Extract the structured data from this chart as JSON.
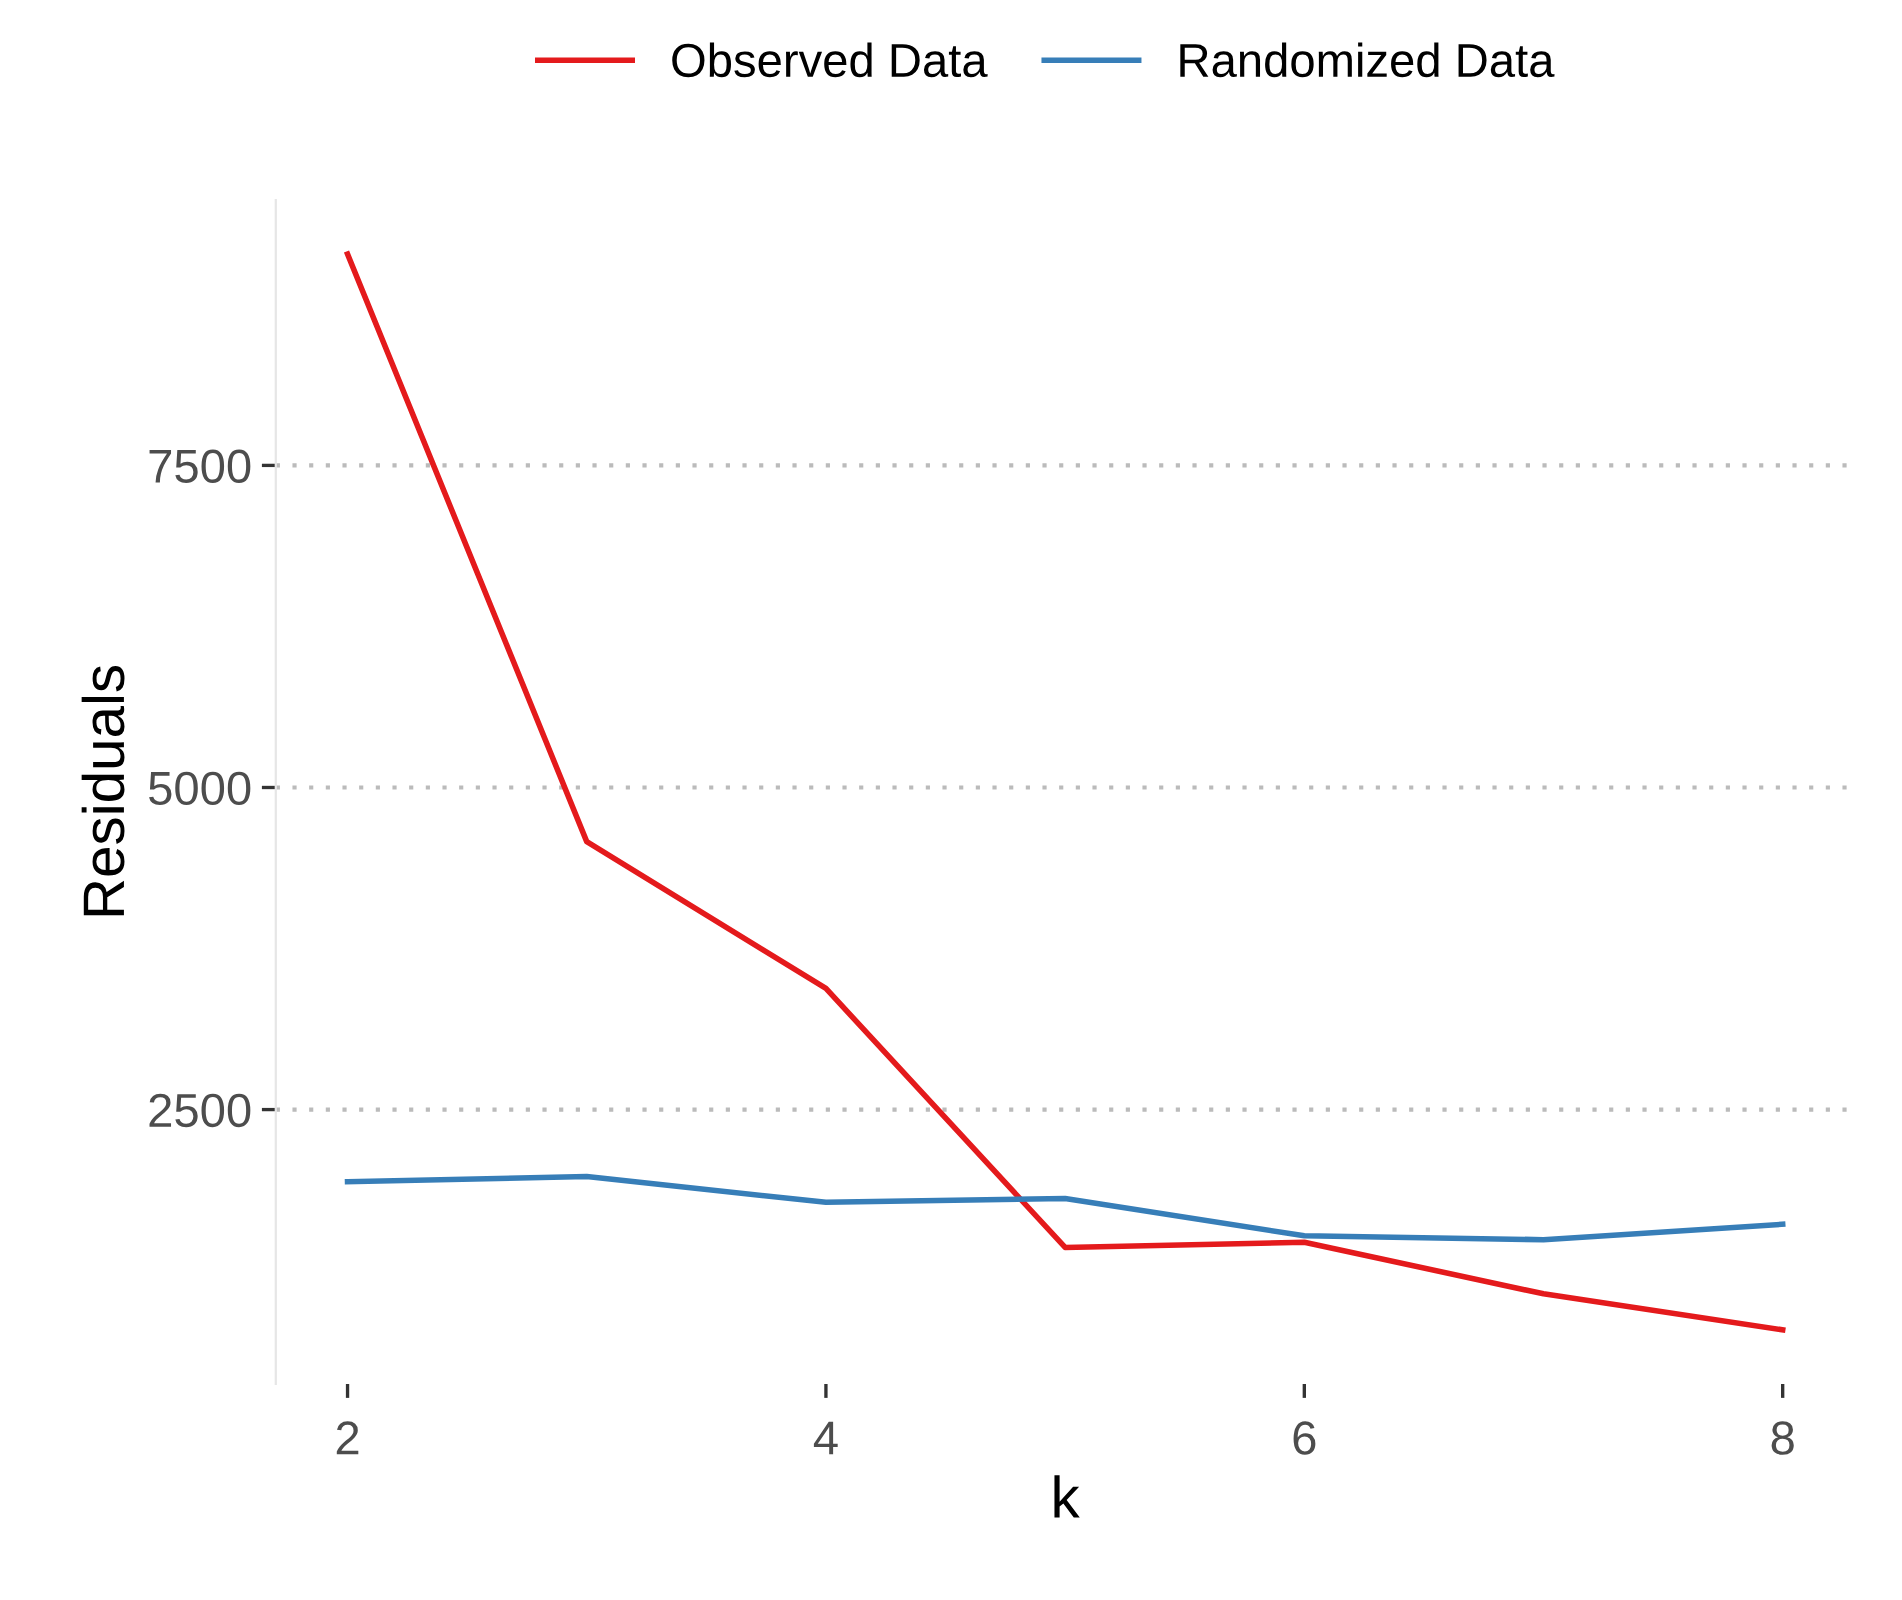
{
  "chart_data": {
    "type": "line",
    "xlabel": "k",
    "ylabel": "Residuals",
    "x": [
      2,
      3,
      4,
      5,
      6,
      7,
      8
    ],
    "series": [
      {
        "name": "Observed Data",
        "color": "#e41a1c",
        "values": [
          9140,
          4580,
          3440,
          1430,
          1470,
          1070,
          790
        ]
      },
      {
        "name": "Randomized Data",
        "color": "#377eb8",
        "values": [
          1940,
          1980,
          1780,
          1810,
          1520,
          1490,
          1610
        ]
      }
    ],
    "xlim": [
      1.7,
      8.3
    ],
    "xticks": [
      2,
      4,
      6,
      8
    ],
    "ylim": [
      370,
      9560
    ],
    "yticks": [
      2500,
      5000,
      7500
    ],
    "grid": "y",
    "legend": "top",
    "marker": "none",
    "line_style": "solid"
  }
}
